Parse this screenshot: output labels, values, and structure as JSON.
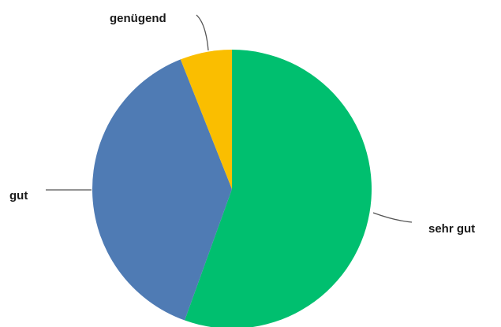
{
  "chart_data": {
    "type": "pie",
    "title": "",
    "slices": [
      {
        "label": "sehr gut",
        "value": 55.5,
        "color": "#00bf6f"
      },
      {
        "label": "gut",
        "value": 38.5,
        "color": "#4f7bb4"
      },
      {
        "label": "genügend",
        "value": 6.0,
        "color": "#fabe00"
      }
    ],
    "start_angle_deg": 0,
    "direction": "clockwise",
    "legend": "none",
    "labels": "outside-with-leader-lines"
  }
}
